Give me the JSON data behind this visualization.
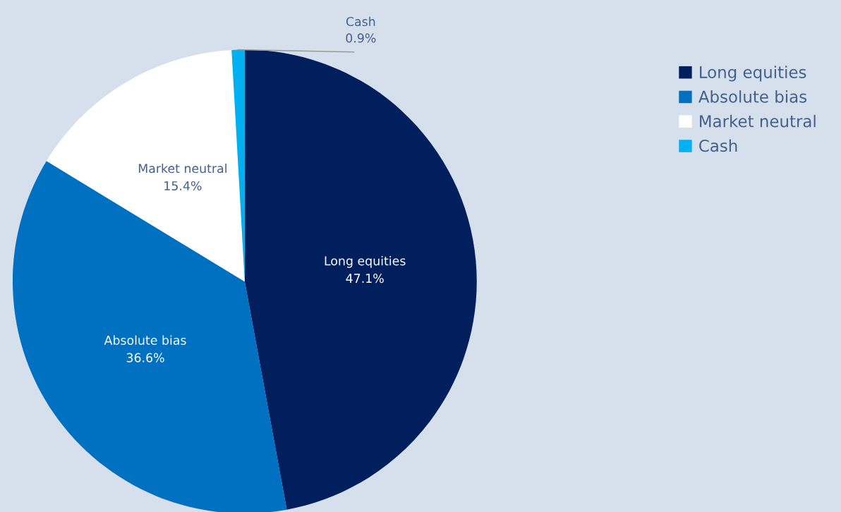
{
  "chart_data": {
    "type": "pie",
    "categories": [
      "Long equities",
      "Absolute bias",
      "Market neutral",
      "Cash"
    ],
    "values": [
      47.1,
      36.6,
      15.4,
      0.9
    ],
    "value_labels": [
      "47.1%",
      "36.6%",
      "15.4%",
      "0.9%"
    ],
    "colors": [
      "#001f5c",
      "#0070c0",
      "#ffffff",
      "#00b0f0"
    ],
    "legend": "right"
  }
}
